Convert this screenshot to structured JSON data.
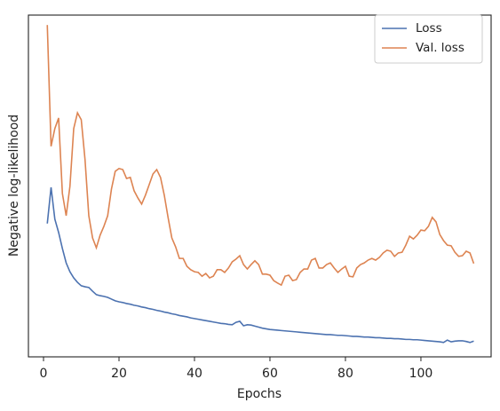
{
  "chart_data": {
    "type": "line",
    "xlabel": "Epochs",
    "ylabel": "Negative log-likelihood",
    "x": [
      1,
      2,
      3,
      4,
      5,
      6,
      7,
      8,
      9,
      10,
      11,
      12,
      13,
      14,
      15,
      16,
      17,
      18,
      19,
      20,
      21,
      22,
      23,
      24,
      25,
      26,
      27,
      28,
      29,
      30,
      31,
      32,
      33,
      34,
      35,
      36,
      37,
      38,
      39,
      40,
      41,
      42,
      43,
      44,
      45,
      46,
      47,
      48,
      49,
      50,
      51,
      52,
      53,
      54,
      55,
      56,
      57,
      58,
      59,
      60,
      61,
      62,
      63,
      64,
      65,
      66,
      67,
      68,
      69,
      70,
      71,
      72,
      73,
      74,
      75,
      76,
      77,
      78,
      79,
      80,
      81,
      82,
      83,
      84,
      85,
      86,
      87,
      88,
      89,
      90,
      91,
      92,
      93,
      94,
      95,
      96,
      97,
      98,
      99,
      100,
      101,
      102,
      103,
      104,
      105,
      106,
      107,
      108,
      109,
      110,
      111,
      112,
      113,
      114
    ],
    "series": [
      {
        "name": "Loss",
        "color": "#4c72b0",
        "values": [
          39,
          49.6,
          40.3,
          36.4,
          31.7,
          27.5,
          24.9,
          23.1,
          21.8,
          20.8,
          20.5,
          20.3,
          19.2,
          18.2,
          17.9,
          17.7,
          17.4,
          16.9,
          16.4,
          16.1,
          15.9,
          15.6,
          15.4,
          15.1,
          14.9,
          14.6,
          14.4,
          14.1,
          13.9,
          13.6,
          13.4,
          13.1,
          12.9,
          12.6,
          12.4,
          12.1,
          11.9,
          11.7,
          11.4,
          11.2,
          11.0,
          10.8,
          10.6,
          10.4,
          10.2,
          10.0,
          9.8,
          9.7,
          9.5,
          9.4,
          10.1,
          10.4,
          9.1,
          9.4,
          9.3,
          9.0,
          8.7,
          8.4,
          8.2,
          8.0,
          7.9,
          7.8,
          7.7,
          7.6,
          7.5,
          7.4,
          7.3,
          7.2,
          7.1,
          7.0,
          6.9,
          6.8,
          6.7,
          6.6,
          6.5,
          6.5,
          6.4,
          6.3,
          6.3,
          6.2,
          6.1,
          6.0,
          6.0,
          5.9,
          5.8,
          5.8,
          5.7,
          5.6,
          5.6,
          5.5,
          5.4,
          5.4,
          5.3,
          5.3,
          5.2,
          5.1,
          5.1,
          5.0,
          5.0,
          4.9,
          4.8,
          4.7,
          4.6,
          4.5,
          4.4,
          4.2,
          4.9,
          4.4,
          4.6,
          4.7,
          4.7,
          4.5,
          4.2,
          4.6
        ]
      },
      {
        "name": "Val. loss",
        "color": "#dd8452",
        "values": [
          97.1,
          61.6,
          66.8,
          69.9,
          47.8,
          41.3,
          49.9,
          66.8,
          71.4,
          69.4,
          57.7,
          41.3,
          34.8,
          31.9,
          35.6,
          38.2,
          41.3,
          49.1,
          54.3,
          55.1,
          54.8,
          52.2,
          52.5,
          48.6,
          46.5,
          44.7,
          47.3,
          50.4,
          53.5,
          54.8,
          52.5,
          47.3,
          40.8,
          34.8,
          32.2,
          28.8,
          28.8,
          26.5,
          25.5,
          24.9,
          24.7,
          23.6,
          24.4,
          23.1,
          23.6,
          25.5,
          25.5,
          24.7,
          26.0,
          27.8,
          28.6,
          29.6,
          27.0,
          25.7,
          27.0,
          28.1,
          27.0,
          24.2,
          24.2,
          23.9,
          22.3,
          21.6,
          21.0,
          23.6,
          23.9,
          22.3,
          22.6,
          24.7,
          25.7,
          25.7,
          28.3,
          28.8,
          26.0,
          26.0,
          27.0,
          27.5,
          26.0,
          24.7,
          25.7,
          26.5,
          23.6,
          23.4,
          26.0,
          27.0,
          27.5,
          28.3,
          28.8,
          28.3,
          29.1,
          30.4,
          31.2,
          30.9,
          29.4,
          30.4,
          30.6,
          32.7,
          35.3,
          34.5,
          35.6,
          37.1,
          36.9,
          38.2,
          40.8,
          39.5,
          35.8,
          34.0,
          32.7,
          32.5,
          30.6,
          29.4,
          29.6,
          30.9,
          30.4,
          27.3
        ]
      }
    ],
    "xlim": [
      -4,
      118.6
    ],
    "ylim": [
      0,
      100
    ],
    "xticks": [
      0,
      20,
      40,
      60,
      80,
      100
    ],
    "grid": false,
    "legend": "upper right"
  }
}
